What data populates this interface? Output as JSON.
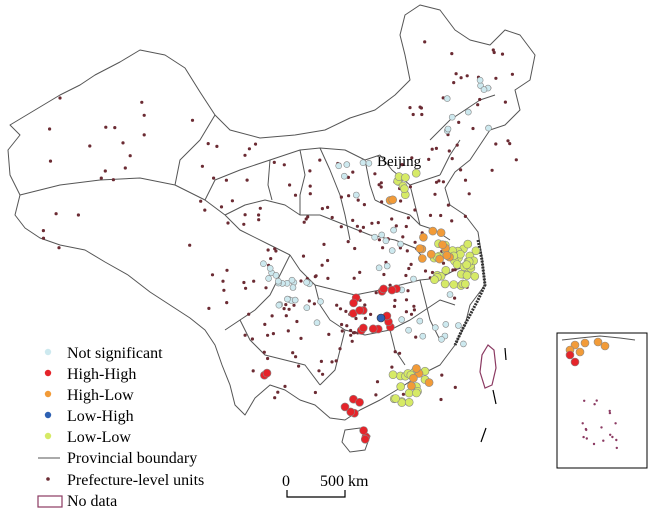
{
  "map": {
    "city_label": "Beijing",
    "legend": {
      "items": [
        {
          "label": "Not significant",
          "color": "#cde9ef",
          "symbol": "dot"
        },
        {
          "label": "High-High",
          "color": "#e5242a",
          "symbol": "dot"
        },
        {
          "label": "High-Low",
          "color": "#f29b38",
          "symbol": "dot"
        },
        {
          "label": "Low-High",
          "color": "#2e61b3",
          "symbol": "dot"
        },
        {
          "label": "Low-Low",
          "color": "#d6ea66",
          "symbol": "dot"
        },
        {
          "label": "Provincial boundary",
          "color": "#555555",
          "symbol": "line"
        },
        {
          "label": "Prefecture-level units",
          "color": "#6b2b33",
          "symbol": "small-dot"
        },
        {
          "label": "No data",
          "color": "#8b3a62",
          "symbol": "box"
        }
      ]
    },
    "scale": {
      "zero": "0",
      "distance": "500 km"
    },
    "colors": {
      "boundary": "#555555",
      "prefecture": "#6b2b33",
      "no_data": "#8b3a62"
    }
  }
}
